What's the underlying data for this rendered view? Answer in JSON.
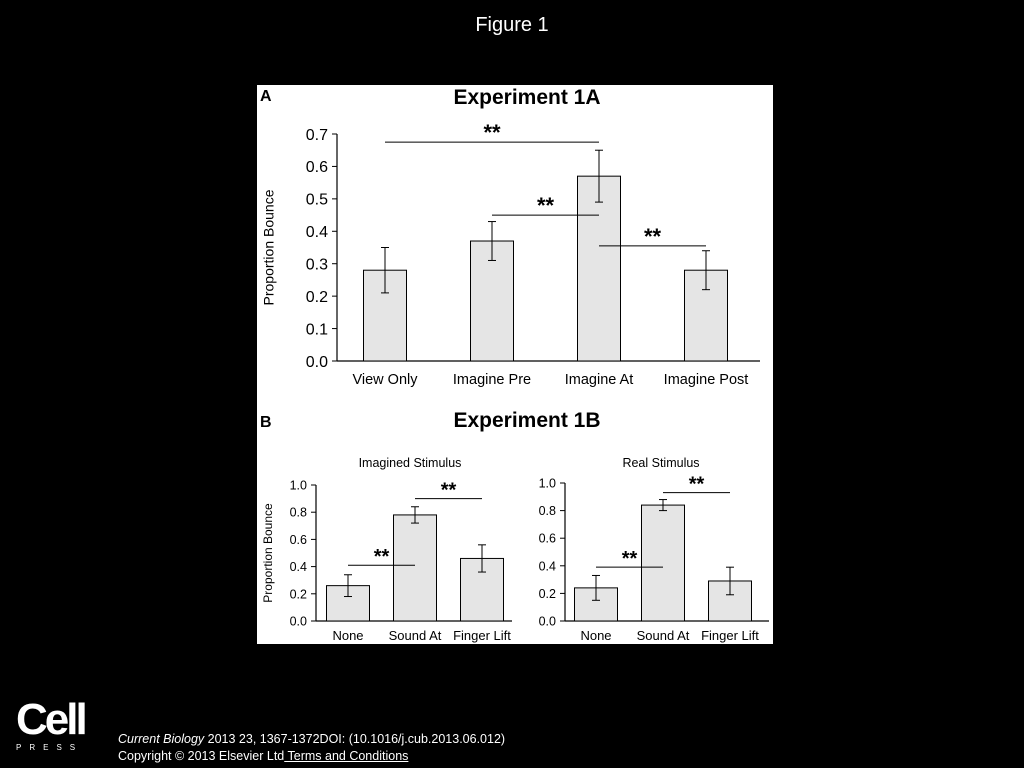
{
  "slide": {
    "title": "Figure 1"
  },
  "footer": {
    "logo_word": "Cell",
    "logo_sub": "PRESS",
    "journal": "Current Biology",
    "citation_rest": " 2013 23, 1367-1372DOI: (10.1016/j.cub.2013.06.012)",
    "copyright": "Copyright © 2013 Elsevier Ltd",
    "terms_link": " Terms and Conditions"
  },
  "chart_data": [
    {
      "panel_letter": "A",
      "type": "bar",
      "title": "Experiment 1A",
      "ylabel": "Proportion Bounce",
      "xlabel": "",
      "categories": [
        "View Only",
        "Imagine Pre",
        "Imagine At",
        "Imagine Post"
      ],
      "values": [
        0.28,
        0.37,
        0.57,
        0.28
      ],
      "error": [
        0.07,
        0.06,
        0.08,
        0.06
      ],
      "ylim": [
        0,
        0.7
      ],
      "yticks": [
        "0.0",
        "0.1",
        "0.2",
        "0.3",
        "0.4",
        "0.5",
        "0.6",
        "0.7"
      ],
      "bar_color": "#e5e5e5",
      "significance": [
        {
          "from": 0,
          "to": 2,
          "level": 0.675,
          "label": "**"
        },
        {
          "from": 1,
          "to": 2,
          "level": 0.45,
          "label": "**"
        },
        {
          "from": 2,
          "to": 3,
          "level": 0.355,
          "label": "**"
        }
      ]
    },
    {
      "panel_letter": "B",
      "group_title": "Experiment 1B",
      "type": "bar",
      "title": "Imagined Stimulus",
      "ylabel": "Proportion Bounce",
      "categories": [
        "None",
        "Sound At",
        "Finger Lift"
      ],
      "values": [
        0.26,
        0.78,
        0.46
      ],
      "error": [
        0.08,
        0.06,
        0.1
      ],
      "ylim": [
        0,
        1.0
      ],
      "yticks": [
        "0.0",
        "0.2",
        "0.4",
        "0.6",
        "0.8",
        "1.0"
      ],
      "bar_color": "#e5e5e5",
      "significance": [
        {
          "from": 0,
          "to": 1,
          "level": 0.41,
          "label": "**"
        },
        {
          "from": 1,
          "to": 2,
          "level": 0.9,
          "label": "**"
        }
      ]
    },
    {
      "type": "bar",
      "title": "Real Stimulus",
      "ylabel": "",
      "categories": [
        "None",
        "Sound At",
        "Finger Lift"
      ],
      "values": [
        0.24,
        0.84,
        0.29
      ],
      "error": [
        0.09,
        0.04,
        0.1
      ],
      "ylim": [
        0,
        1.0
      ],
      "yticks": [
        "0.0",
        "0.2",
        "0.4",
        "0.6",
        "0.8",
        "1.0"
      ],
      "bar_color": "#e5e5e5",
      "significance": [
        {
          "from": 0,
          "to": 1,
          "level": 0.39,
          "label": "**"
        },
        {
          "from": 1,
          "to": 2,
          "level": 0.93,
          "label": "**"
        }
      ]
    }
  ]
}
